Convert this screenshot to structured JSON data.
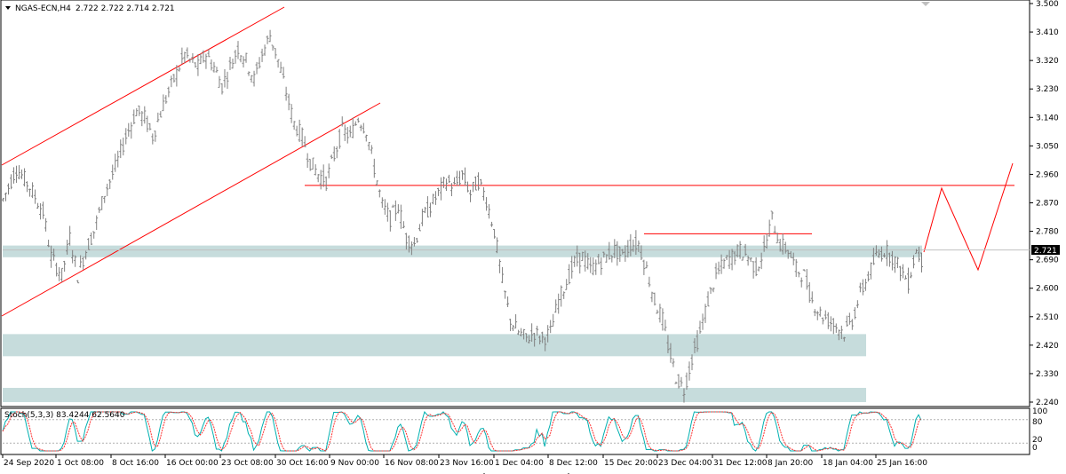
{
  "header": {
    "symbol": "NGAS-ECN,H4",
    "ohlc": "2.722 2.722 2.714 2.721"
  },
  "current_price_label": "2.721",
  "stoch": {
    "label": "Stoch(5,3,3) 83.4244 62.5640",
    "levels": [
      "100",
      "80",
      "20",
      "0"
    ]
  },
  "colors": {
    "bull_bear_bar": "#808080",
    "zone": "#c6dcdc",
    "trendline": "#ff0000",
    "stoch_main": "#00b0b0",
    "stoch_signal": "#ff3030",
    "grid": "#c0c0c0"
  },
  "chart_data": {
    "type": "bar",
    "title": "NGAS-ECN,H4",
    "x_tick_labels": [
      "24 Sep 2020",
      "1 Oct 08:00",
      "8 Oct 16:00",
      "16 Oct 00:00",
      "23 Oct 08:00",
      "30 Oct 16:00",
      "9 Nov 00:00",
      "16 Nov 08:00",
      "23 Nov 16:00",
      "1 Dec 04:00",
      "8 Dec 12:00",
      "15 Dec 20:00",
      "23 Dec 04:00",
      "31 Dec 12:00",
      "8 Jan 20:00",
      "18 Jan 04:00",
      "25 Jan 16:00"
    ],
    "y_tick_labels": [
      "3.500",
      "3.410",
      "3.320",
      "3.230",
      "3.140",
      "3.050",
      "2.960",
      "2.870",
      "2.780",
      "2.690",
      "2.600",
      "2.510",
      "2.420",
      "2.330",
      "2.240"
    ],
    "ylim": [
      2.24,
      3.5
    ],
    "price_path": [
      [
        0,
        2.88
      ],
      [
        5,
        2.98
      ],
      [
        10,
        2.92
      ],
      [
        15,
        2.84
      ],
      [
        18,
        2.7
      ],
      [
        22,
        2.64
      ],
      [
        25,
        2.76
      ],
      [
        28,
        2.64
      ],
      [
        31,
        2.72
      ],
      [
        34,
        2.78
      ],
      [
        38,
        2.9
      ],
      [
        42,
        2.98
      ],
      [
        46,
        3.08
      ],
      [
        50,
        3.16
      ],
      [
        53,
        3.14
      ],
      [
        56,
        3.08
      ],
      [
        60,
        3.18
      ],
      [
        64,
        3.26
      ],
      [
        68,
        3.34
      ],
      [
        70,
        3.32
      ],
      [
        73,
        3.3
      ],
      [
        76,
        3.34
      ],
      [
        79,
        3.3
      ],
      [
        82,
        3.24
      ],
      [
        85,
        3.3
      ],
      [
        88,
        3.36
      ],
      [
        91,
        3.32
      ],
      [
        94,
        3.26
      ],
      [
        97,
        3.34
      ],
      [
        100,
        3.4
      ],
      [
        103,
        3.32
      ],
      [
        106,
        3.22
      ],
      [
        109,
        3.12
      ],
      [
        112,
        3.08
      ],
      [
        115,
        3.0
      ],
      [
        118,
        2.96
      ],
      [
        121,
        2.94
      ],
      [
        124,
        3.02
      ],
      [
        127,
        3.1
      ],
      [
        130,
        3.08
      ],
      [
        133,
        3.14
      ],
      [
        136,
        3.1
      ],
      [
        139,
        2.98
      ],
      [
        142,
        2.86
      ],
      [
        145,
        2.82
      ],
      [
        148,
        2.86
      ],
      [
        151,
        2.76
      ],
      [
        154,
        2.74
      ],
      [
        157,
        2.82
      ],
      [
        160,
        2.86
      ],
      [
        163,
        2.9
      ],
      [
        166,
        2.94
      ],
      [
        169,
        2.92
      ],
      [
        172,
        2.96
      ],
      [
        175,
        2.9
      ],
      [
        178,
        2.94
      ],
      [
        181,
        2.88
      ],
      [
        184,
        2.78
      ],
      [
        187,
        2.62
      ],
      [
        190,
        2.5
      ],
      [
        193,
        2.46
      ],
      [
        196,
        2.44
      ],
      [
        199,
        2.46
      ],
      [
        202,
        2.44
      ],
      [
        205,
        2.46
      ],
      [
        208,
        2.56
      ],
      [
        211,
        2.62
      ],
      [
        214,
        2.68
      ],
      [
        217,
        2.7
      ],
      [
        220,
        2.66
      ],
      [
        223,
        2.68
      ],
      [
        226,
        2.7
      ],
      [
        229,
        2.72
      ],
      [
        232,
        2.7
      ],
      [
        235,
        2.74
      ],
      [
        238,
        2.74
      ],
      [
        241,
        2.66
      ],
      [
        244,
        2.56
      ],
      [
        247,
        2.5
      ],
      [
        249,
        2.42
      ],
      [
        252,
        2.32
      ],
      [
        255,
        2.28
      ],
      [
        258,
        2.38
      ],
      [
        261,
        2.46
      ],
      [
        264,
        2.56
      ],
      [
        267,
        2.64
      ],
      [
        270,
        2.68
      ],
      [
        273,
        2.7
      ],
      [
        276,
        2.72
      ],
      [
        279,
        2.7
      ],
      [
        282,
        2.66
      ],
      [
        285,
        2.72
      ],
      [
        288,
        2.82
      ],
      [
        291,
        2.74
      ],
      [
        294,
        2.72
      ],
      [
        297,
        2.66
      ],
      [
        300,
        2.64
      ],
      [
        303,
        2.56
      ],
      [
        306,
        2.52
      ],
      [
        309,
        2.5
      ],
      [
        312,
        2.48
      ],
      [
        315,
        2.46
      ],
      [
        318,
        2.5
      ],
      [
        321,
        2.58
      ],
      [
        324,
        2.64
      ],
      [
        327,
        2.7
      ],
      [
        330,
        2.72
      ],
      [
        333,
        2.7
      ],
      [
        336,
        2.66
      ],
      [
        339,
        2.62
      ],
      [
        342,
        2.72
      ],
      [
        344,
        2.69
      ]
    ],
    "annotations": {
      "support_resistance_zones": [
        [
          2.698,
          2.735
        ],
        [
          2.385,
          2.455
        ],
        [
          2.24,
          2.285
        ]
      ],
      "horizontal_levels": [
        2.925,
        2.772
      ]
    }
  }
}
